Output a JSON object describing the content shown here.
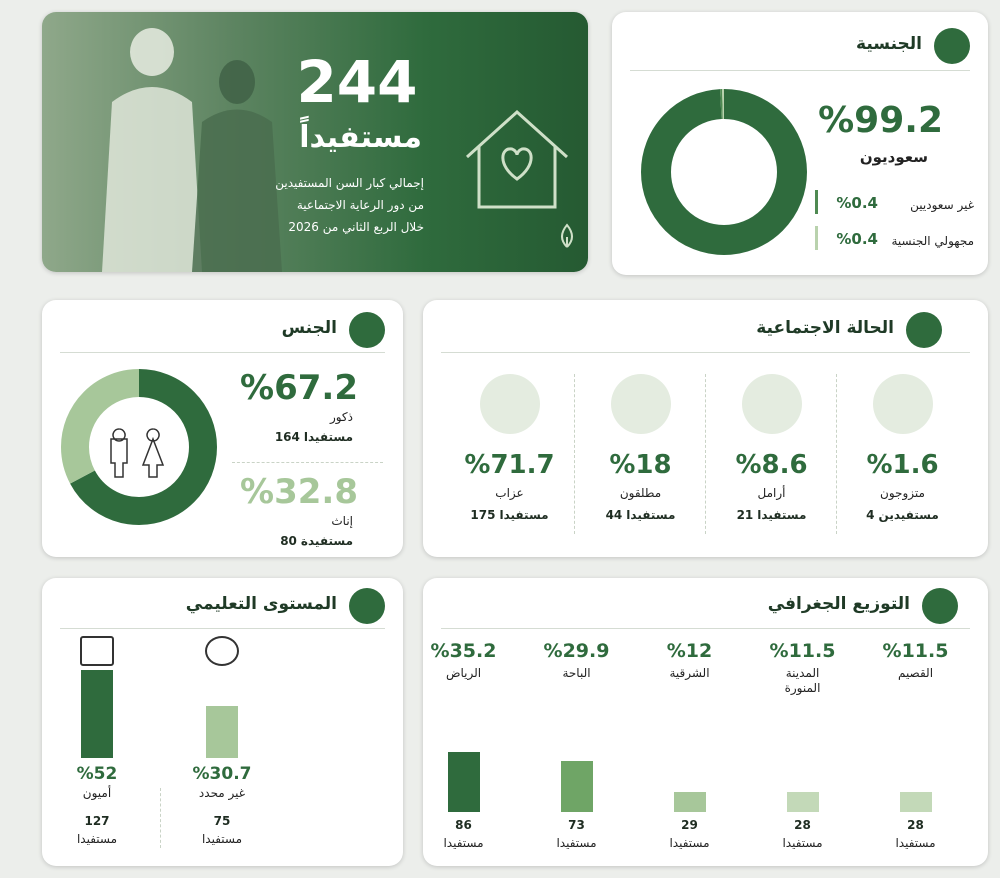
{
  "hero": {
    "count": 244,
    "unit": "مستفيداً",
    "lines": [
      "إجمالي كبار السن المستفيدين",
      "من دور الرعاية الاجتماعية",
      "خلال الربع الثاني من 2026"
    ]
  },
  "nationality": {
    "title": "الجنسية",
    "items": [
      {
        "name": "سعوديون",
        "value": 99.2,
        "label": "%99.2",
        "color": "#2f6b3d"
      },
      {
        "name": "غير سعوديين",
        "value": 0.4,
        "label": "%0.4",
        "color": "#4f8a52"
      },
      {
        "name": "مجهولي الجنسية",
        "value": 0.4,
        "label": "%0.4",
        "color": "#b9d2ad"
      }
    ]
  },
  "gender": {
    "title": "الجنس",
    "items": [
      {
        "name": "ذكور",
        "value": 67.2,
        "label": "%67.2",
        "count": 164,
        "unit": "مستفيدا",
        "color": "#2f6b3d"
      },
      {
        "name": "إناث",
        "value": 32.8,
        "label": "%32.8",
        "count": 80,
        "unit": "مستفيدة",
        "color": "#a7c79a"
      }
    ]
  },
  "marital": {
    "title": "الحالة الاجتماعية",
    "items": [
      {
        "name": "متزوجون",
        "value": 1.6,
        "label": "%1.6",
        "count": 4,
        "unit": "مستفيدين"
      },
      {
        "name": "أرامل",
        "value": 8.6,
        "label": "%8.6",
        "count": 21,
        "unit": "مستفيدا"
      },
      {
        "name": "مطلقون",
        "value": 18,
        "label": "%18",
        "count": 44,
        "unit": "مستفيدا"
      },
      {
        "name": "عزاب",
        "value": 71.7,
        "label": "%71.7",
        "count": 175,
        "unit": "مستفيدا"
      }
    ]
  },
  "education": {
    "title": "المستوى التعليمي",
    "items": [
      {
        "name": "غير محدد",
        "value": 30.7,
        "label": "%30.7",
        "count": 75,
        "unit": "مستفيدا",
        "color": "#a7c79a"
      },
      {
        "name": "أميون",
        "value": 52,
        "label": "%52",
        "count": 127,
        "unit": "مستفيدا",
        "color": "#2f6b3d"
      }
    ]
  },
  "geography": {
    "title": "التوزيع الجغرافي",
    "items": [
      {
        "name": "القصيم",
        "value": 11.5,
        "label": "%11.5",
        "count": 28,
        "unit": "مستفيدا",
        "color": "#c3d9b8"
      },
      {
        "name": "المدينة المنورة",
        "value": 11.5,
        "label": "%11.5",
        "count": 28,
        "unit": "مستفيدا",
        "color": "#c3d9b8"
      },
      {
        "name": "الشرقية",
        "value": 12,
        "label": "%12",
        "count": 29,
        "unit": "مستفيدا",
        "color": "#a7c79a"
      },
      {
        "name": "الباحة",
        "value": 29.9,
        "label": "%29.9",
        "count": 73,
        "unit": "مستفيدا",
        "color": "#6fa566"
      },
      {
        "name": "الرياض",
        "value": 35.2,
        "label": "%35.2",
        "count": 86,
        "unit": "مستفيدا",
        "color": "#2f6b3d"
      }
    ]
  }
}
